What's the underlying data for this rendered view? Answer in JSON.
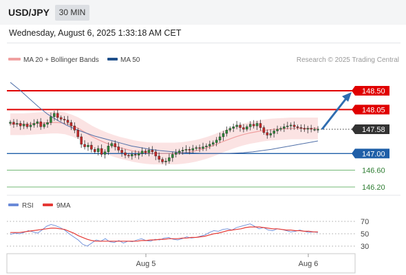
{
  "header": {
    "symbol": "USD/JPY",
    "timeframe": "30 MIN"
  },
  "timestamp": "Wednesday, August 6, 2025 1:33:18 AM CET",
  "legend": {
    "ma20_label": "MA 20 + Bollinger Bands",
    "ma50_label": "MA 50",
    "credit": "Research © 2025 Trading Central",
    "rsi_label": "RSI",
    "rsi_ma_label": "9MA"
  },
  "colors": {
    "bull": "#2e8b3a",
    "bear": "#c62828",
    "resistance": "#e00000",
    "support": "#1f5fa8",
    "support_light": "#43a047",
    "ma20": "#f0a0a0",
    "bollinger_fill": "#fbe3e3",
    "ma50": "#4f6fa8",
    "rsi": "#6a8ad8",
    "rsi_ma": "#e53935",
    "arrow": "#2f6db0",
    "current": "#333333"
  },
  "chart_data": [
    {
      "type": "candlestick",
      "title": "USD/JPY",
      "timeframe": "30 MIN",
      "x_tick_labels": [
        "Aug 5",
        "Aug 6"
      ],
      "ylim": [
        145.75,
        148.95
      ],
      "current_price": 147.58,
      "levels": [
        {
          "label": "148.50",
          "value": 148.5,
          "kind": "resistance"
        },
        {
          "label": "148.05",
          "value": 148.05,
          "kind": "resistance"
        },
        {
          "label": "147.58",
          "value": 147.58,
          "kind": "current"
        },
        {
          "label": "147.00",
          "value": 147.0,
          "kind": "support"
        },
        {
          "label": "146.60",
          "value": 146.6,
          "kind": "support_light"
        },
        {
          "label": "146.20",
          "value": 146.2,
          "kind": "support_light"
        }
      ],
      "target_arrow": {
        "from": 147.58,
        "to": 148.5
      },
      "closes": [
        147.75,
        147.7,
        147.72,
        147.66,
        147.7,
        147.64,
        147.68,
        147.72,
        147.76,
        147.64,
        147.7,
        147.74,
        147.88,
        147.96,
        147.86,
        147.82,
        147.8,
        147.74,
        147.66,
        147.56,
        147.4,
        147.22,
        147.16,
        147.2,
        147.1,
        147.04,
        147.12,
        146.98,
        147.04,
        147.18,
        147.24,
        147.16,
        147.08,
        147.02,
        146.96,
        146.94,
        146.98,
        146.96,
        147.0,
        147.06,
        147.02,
        147.08,
        147.04,
        146.94,
        146.86,
        146.8,
        146.82,
        146.9,
        146.98,
        147.02,
        147.06,
        147.08,
        147.1,
        147.08,
        147.12,
        147.14,
        147.12,
        147.16,
        147.18,
        147.22,
        147.26,
        147.32,
        147.4,
        147.48,
        147.56,
        147.6,
        147.64,
        147.68,
        147.62,
        147.58,
        147.64,
        147.7,
        147.66,
        147.72,
        147.62,
        147.5,
        147.44,
        147.48,
        147.54,
        147.58,
        147.6,
        147.64,
        147.66,
        147.68,
        147.64,
        147.62,
        147.6,
        147.58,
        147.6,
        147.58,
        147.58,
        147.58
      ],
      "ma20": [
        147.7,
        147.7,
        147.7,
        147.71,
        147.72,
        147.73,
        147.74,
        147.74,
        147.72,
        147.67,
        147.6,
        147.5,
        147.4,
        147.32,
        147.25,
        147.19,
        147.14,
        147.1,
        147.06,
        147.03,
        147.01,
        147.0,
        147.0,
        147.0,
        147.0,
        147.01,
        147.03,
        147.06,
        147.1,
        147.15,
        147.21,
        147.28,
        147.34,
        147.4,
        147.45,
        147.49,
        147.52,
        147.55,
        147.57,
        147.58,
        147.59,
        147.6,
        147.6,
        147.6,
        147.6,
        147.6
      ],
      "ma50": [
        148.7,
        148.52,
        148.32,
        148.12,
        147.94,
        147.8,
        147.68,
        147.58,
        147.5,
        147.42,
        147.36,
        147.3,
        147.24,
        147.18,
        147.14,
        147.1,
        147.07,
        147.05,
        147.03,
        147.02,
        147.01,
        147.0,
        147.0,
        147.0,
        147.01,
        147.02,
        147.04,
        147.07,
        147.1,
        147.14,
        147.18,
        147.22,
        147.26,
        147.3
      ],
      "bb_width": 0.26
    },
    {
      "type": "line",
      "title": "RSI",
      "y_tick_labels": [
        "70",
        "50",
        "30"
      ],
      "y_ticks": [
        70,
        50,
        30
      ],
      "ylim": [
        20,
        80
      ],
      "series": [
        {
          "name": "RSI",
          "values": [
            49,
            51,
            50,
            52,
            55,
            53,
            51,
            56,
            62,
            65,
            63,
            60,
            56,
            50,
            45,
            40,
            33,
            30,
            35,
            40,
            38,
            42,
            37,
            36,
            39,
            35,
            38,
            37,
            40,
            42,
            39,
            38,
            41,
            40,
            43,
            44,
            41,
            40,
            42,
            45,
            43,
            44,
            46,
            48,
            52,
            55,
            54,
            57,
            58,
            56,
            60,
            62,
            64,
            66,
            62,
            58,
            60,
            56,
            55,
            58,
            57,
            55,
            53,
            54,
            56,
            54,
            52,
            53,
            52
          ]
        },
        {
          "name": "9MA",
          "values": [
            52,
            52,
            52,
            53,
            54,
            55,
            56,
            57,
            58,
            59,
            59,
            58,
            57,
            54,
            51,
            47,
            44,
            41,
            39,
            38,
            38,
            38,
            38,
            38,
            38,
            38,
            38,
            38,
            38,
            39,
            39,
            40,
            40,
            41,
            41,
            42,
            42,
            42,
            43,
            43,
            44,
            44,
            45,
            46,
            48,
            50,
            51,
            53,
            55,
            56,
            57,
            58,
            60,
            61,
            61,
            61,
            60,
            59,
            58,
            58,
            57,
            56,
            56,
            55,
            55,
            54,
            54,
            53,
            53
          ]
        }
      ]
    }
  ]
}
